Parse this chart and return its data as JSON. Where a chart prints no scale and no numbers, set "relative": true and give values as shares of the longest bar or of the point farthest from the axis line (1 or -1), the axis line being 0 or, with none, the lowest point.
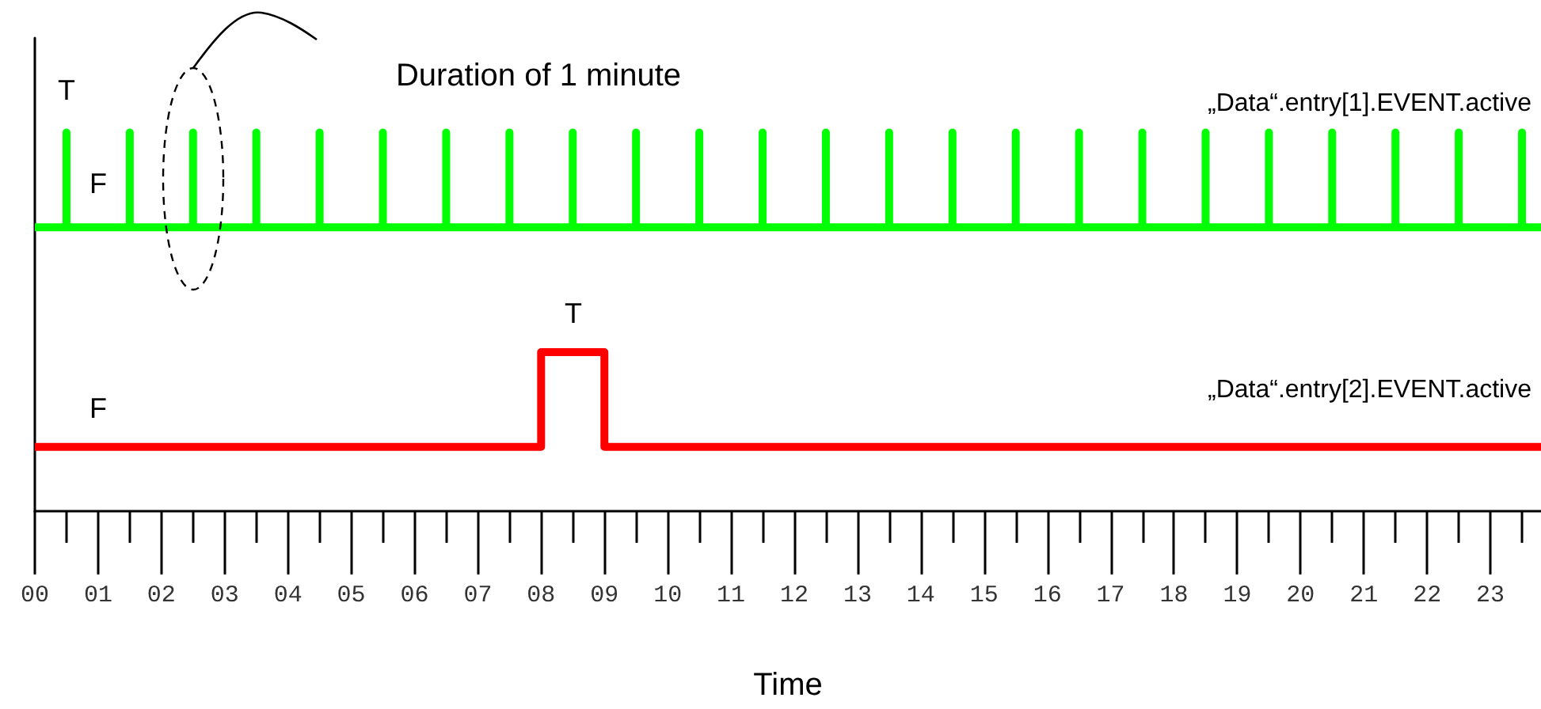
{
  "chart_data": {
    "type": "line",
    "relative": true,
    "xlabel": "Time",
    "xlim": [
      0,
      23.8
    ],
    "xticks": [
      {
        "value": 0,
        "label": "00"
      },
      {
        "value": 1,
        "label": "01"
      },
      {
        "value": 2,
        "label": "02"
      },
      {
        "value": 3,
        "label": "03"
      },
      {
        "value": 4,
        "label": "04"
      },
      {
        "value": 5,
        "label": "05"
      },
      {
        "value": 6,
        "label": "06"
      },
      {
        "value": 7,
        "label": "07"
      },
      {
        "value": 8,
        "label": "08"
      },
      {
        "value": 9,
        "label": "09"
      },
      {
        "value": 10,
        "label": "10"
      },
      {
        "value": 11,
        "label": "11"
      },
      {
        "value": 12,
        "label": "12"
      },
      {
        "value": 13,
        "label": "13"
      },
      {
        "value": 14,
        "label": "14"
      },
      {
        "value": 15,
        "label": "15"
      },
      {
        "value": 16,
        "label": "16"
      },
      {
        "value": 17,
        "label": "17"
      },
      {
        "value": 18,
        "label": "18"
      },
      {
        "value": 19,
        "label": "19"
      },
      {
        "value": 20,
        "label": "20"
      },
      {
        "value": 21,
        "label": "21"
      },
      {
        "value": 22,
        "label": "22"
      },
      {
        "value": 23,
        "label": "23"
      }
    ],
    "series": [
      {
        "name": "„Data“.entry[1].EVENT.active",
        "color": "#00ff00",
        "x": [
          0,
          0.5,
          0.5,
          0.5,
          1.5,
          1.5,
          1.5,
          2.5,
          2.5,
          2.5,
          3.5,
          3.5,
          3.5,
          4.5,
          4.5,
          4.5,
          5.5,
          5.5,
          5.5,
          6.5,
          6.5,
          6.5,
          7.5,
          7.5,
          7.5,
          8.5,
          8.5,
          8.5,
          9.5,
          9.5,
          9.5,
          10.5,
          10.5,
          10.5,
          11.5,
          11.5,
          11.5,
          12.5,
          12.5,
          12.5,
          13.5,
          13.5,
          13.5,
          14.5,
          14.5,
          14.5,
          15.5,
          15.5,
          15.5,
          16.5,
          16.5,
          16.5,
          17.5,
          17.5,
          17.5,
          18.5,
          18.5,
          18.5,
          19.5,
          19.5,
          19.5,
          20.5,
          20.5,
          20.5,
          21.5,
          21.5,
          21.5,
          22.5,
          22.5,
          22.5,
          23.5,
          23.5,
          23.5,
          23.8
        ],
        "values": [
          0.75,
          0.75,
          1,
          0.75,
          0.75,
          1,
          0.75,
          0.75,
          1,
          0.75,
          0.75,
          1,
          0.75,
          0.75,
          1,
          0.75,
          0.75,
          1,
          0.75,
          0.75,
          1,
          0.75,
          0.75,
          1,
          0.75,
          0.75,
          1,
          0.75,
          0.75,
          1,
          0.75,
          0.75,
          1,
          0.75,
          0.75,
          1,
          0.75,
          0.75,
          1,
          0.75,
          0.75,
          1,
          0.75,
          0.75,
          1,
          0.75,
          0.75,
          1,
          0.75,
          0.75,
          1,
          0.75,
          0.75,
          1,
          0.75,
          0.75,
          1,
          0.75,
          0.75,
          1,
          0.75,
          0.75,
          1,
          0.75,
          0.75,
          1,
          0.75,
          0.75,
          1,
          0.75,
          0.75,
          1,
          0.75,
          0.75
        ]
      },
      {
        "name": "„Data“.entry[2].EVENT.active",
        "color": "#ff0000",
        "x": [
          0,
          8,
          8,
          9,
          9,
          23.8
        ],
        "values": [
          0.17,
          0.17,
          0.42,
          0.42,
          0.17,
          0.17
        ]
      }
    ],
    "annotations": [
      "T",
      "F",
      "Duration of 1 minute",
      "T",
      "F"
    ],
    "grid": false,
    "legend": false,
    "marker": "none",
    "line_style": "solid"
  }
}
